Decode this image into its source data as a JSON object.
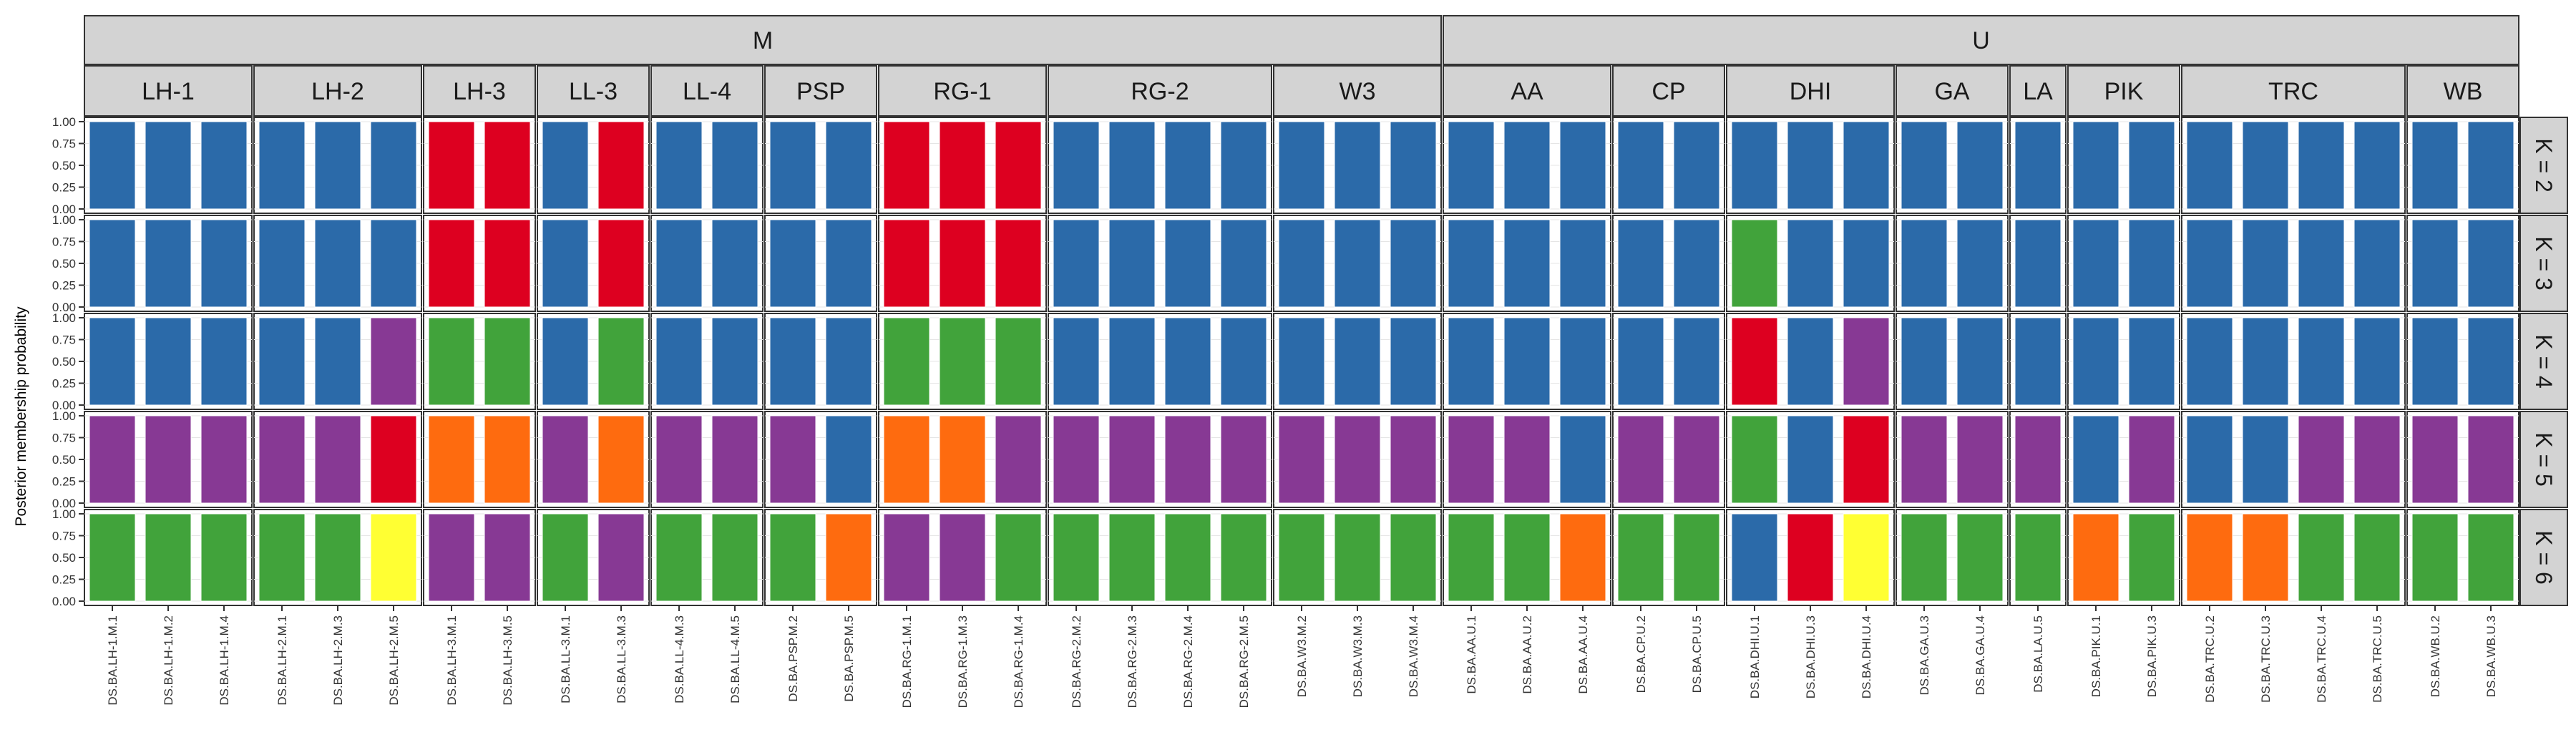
{
  "chart_data": {
    "type": "bar",
    "stacked": true,
    "ylabel": "Posterior membership probability",
    "yticks": [
      "0.00",
      "0.25",
      "0.50",
      "0.75",
      "1.00"
    ],
    "ylim": [
      0,
      1
    ],
    "cluster_colors": {
      "blue": "#2b6aa9",
      "red": "#dd0020",
      "green": "#41a33b",
      "purple": "#873994",
      "orange": "#fe6b0f",
      "yellow": "#ffff33"
    },
    "top_groups": [
      {
        "label": "M",
        "populations": [
          "LH-1",
          "LH-2",
          "LH-3",
          "LL-3",
          "LL-4",
          "PSP",
          "RG-1",
          "RG-2",
          "W3"
        ]
      },
      {
        "label": "U",
        "populations": [
          "AA",
          "CP",
          "DHI",
          "GA",
          "LA",
          "PIK",
          "TRC",
          "WB"
        ]
      }
    ],
    "populations": [
      {
        "label": "LH-1",
        "samples": [
          "DS.BA.LH-1.M.1",
          "DS.BA.LH-1.M.2",
          "DS.BA.LH-1.M.4"
        ]
      },
      {
        "label": "LH-2",
        "samples": [
          "DS.BA.LH-2.M.1",
          "DS.BA.LH-2.M.3",
          "DS.BA.LH-2.M.5"
        ]
      },
      {
        "label": "LH-3",
        "samples": [
          "DS.BA.LH-3.M.1",
          "DS.BA.LH-3.M.5"
        ]
      },
      {
        "label": "LL-3",
        "samples": [
          "DS.BA.LL-3.M.1",
          "DS.BA.LL-3.M.3"
        ]
      },
      {
        "label": "LL-4",
        "samples": [
          "DS.BA.LL-4.M.3",
          "DS.BA.LL-4.M.5"
        ]
      },
      {
        "label": "PSP",
        "samples": [
          "DS.BA.PSP.M.2",
          "DS.BA.PSP.M.5"
        ]
      },
      {
        "label": "RG-1",
        "samples": [
          "DS.BA.RG-1.M.1",
          "DS.BA.RG-1.M.3",
          "DS.BA.RG-1.M.4"
        ]
      },
      {
        "label": "RG-2",
        "samples": [
          "DS.BA.RG-2.M.2",
          "DS.BA.RG-2.M.3",
          "DS.BA.RG-2.M.4",
          "DS.BA.RG-2.M.5"
        ]
      },
      {
        "label": "W3",
        "samples": [
          "DS.BA.W3.M.2",
          "DS.BA.W3.M.3",
          "DS.BA.W3.M.4"
        ]
      },
      {
        "label": "AA",
        "samples": [
          "DS.BA.AA.U.1",
          "DS.BA.AA.U.2",
          "DS.BA.AA.U.4"
        ]
      },
      {
        "label": "CP",
        "samples": [
          "DS.BA.CP.U.2",
          "DS.BA.CP.U.5"
        ]
      },
      {
        "label": "DHI",
        "samples": [
          "DS.BA.DHI.U.1",
          "DS.BA.DHI.U.3",
          "DS.BA.DHI.U.4"
        ]
      },
      {
        "label": "GA",
        "samples": [
          "DS.BA.GA.U.3",
          "DS.BA.GA.U.4"
        ]
      },
      {
        "label": "LA",
        "samples": [
          "DS.BA.LA.U.5"
        ]
      },
      {
        "label": "PIK",
        "samples": [
          "DS.BA.PIK.U.1",
          "DS.BA.PIK.U.3"
        ]
      },
      {
        "label": "TRC",
        "samples": [
          "DS.BA.TRC.U.2",
          "DS.BA.TRC.U.3",
          "DS.BA.TRC.U.4",
          "DS.BA.TRC.U.5"
        ]
      },
      {
        "label": "WB",
        "samples": [
          "DS.BA.WB.U.2",
          "DS.BA.WB.U.3"
        ]
      }
    ],
    "rows": [
      {
        "label": "K = 2",
        "clusters": [
          "blue",
          "blue",
          "blue",
          "blue",
          "blue",
          "blue",
          "red",
          "red",
          "blue",
          "red",
          "blue",
          "blue",
          "blue",
          "blue",
          "red",
          "red",
          "red",
          "blue",
          "blue",
          "blue",
          "blue",
          "blue",
          "blue",
          "blue",
          "blue",
          "blue",
          "blue",
          "blue",
          "blue",
          "blue",
          "blue",
          "blue",
          "blue",
          "blue",
          "blue",
          "blue",
          "blue",
          "blue",
          "blue",
          "blue",
          "blue",
          "blue",
          "blue"
        ]
      },
      {
        "label": "K = 3",
        "clusters": [
          "blue",
          "blue",
          "blue",
          "blue",
          "blue",
          "blue",
          "red",
          "red",
          "blue",
          "red",
          "blue",
          "blue",
          "blue",
          "blue",
          "red",
          "red",
          "red",
          "blue",
          "blue",
          "blue",
          "blue",
          "blue",
          "blue",
          "blue",
          "blue",
          "blue",
          "blue",
          "blue",
          "blue",
          "green",
          "blue",
          "blue",
          "blue",
          "blue",
          "blue",
          "blue",
          "blue",
          "blue",
          "blue",
          "blue",
          "blue",
          "blue",
          "blue"
        ]
      },
      {
        "label": "K = 4",
        "clusters": [
          "blue",
          "blue",
          "blue",
          "blue",
          "blue",
          "purple",
          "green",
          "green",
          "blue",
          "green",
          "blue",
          "blue",
          "blue",
          "blue",
          "green",
          "green",
          "green",
          "blue",
          "blue",
          "blue",
          "blue",
          "blue",
          "blue",
          "blue",
          "blue",
          "blue",
          "blue",
          "blue",
          "blue",
          "red",
          "blue",
          "purple",
          "blue",
          "blue",
          "blue",
          "blue",
          "blue",
          "blue",
          "blue",
          "blue",
          "blue",
          "blue",
          "blue"
        ]
      },
      {
        "label": "K = 5",
        "clusters": [
          "purple",
          "purple",
          "purple",
          "purple",
          "purple",
          "red",
          "orange",
          "orange",
          "purple",
          "orange",
          "purple",
          "purple",
          "purple",
          "blue",
          "orange",
          "orange",
          "purple",
          "purple",
          "purple",
          "purple",
          "purple",
          "purple",
          "purple",
          "purple",
          "purple",
          "purple",
          "blue",
          "purple",
          "purple",
          "green",
          "blue",
          "red",
          "purple",
          "purple",
          "purple",
          "blue",
          "purple",
          "blue",
          "blue",
          "purple",
          "purple",
          "purple",
          "purple"
        ]
      },
      {
        "label": "K = 6",
        "clusters": [
          "green",
          "green",
          "green",
          "green",
          "green",
          "yellow",
          "purple",
          "purple",
          "green",
          "purple",
          "green",
          "green",
          "green",
          "orange",
          "purple",
          "purple",
          "green",
          "green",
          "green",
          "green",
          "green",
          "green",
          "green",
          "green",
          "green",
          "green",
          "orange",
          "green",
          "green",
          "blue",
          "red",
          "yellow",
          "green",
          "green",
          "green",
          "orange",
          "green",
          "orange",
          "orange",
          "green",
          "green",
          "green",
          "green"
        ]
      }
    ]
  }
}
